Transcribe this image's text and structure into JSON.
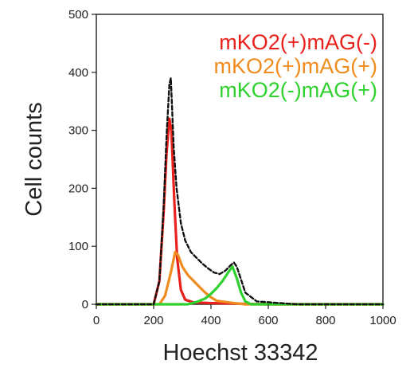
{
  "chart_data": {
    "type": "line",
    "xlabel": "Hoechst 33342",
    "ylabel": "Cell counts",
    "xlim": [
      0,
      1000
    ],
    "ylim": [
      0,
      500
    ],
    "xticks": [
      0,
      200,
      400,
      600,
      800,
      1000
    ],
    "yticks": [
      0,
      100,
      200,
      300,
      400,
      500
    ],
    "xtick_labels": [
      "0",
      "200",
      "400",
      "600",
      "800",
      "1000"
    ],
    "ytick_labels": [
      "0",
      "100",
      "200",
      "300",
      "400",
      "500"
    ],
    "grid": false,
    "legend_position": "top-right",
    "series": [
      {
        "name": "mKO2(+)mAG(-)",
        "color": "#e8211d",
        "style": "solid",
        "x": [
          0,
          200,
          220,
          235,
          245,
          255,
          262,
          272,
          282,
          295,
          310,
          340,
          400,
          500,
          600,
          1000
        ],
        "y": [
          0,
          0,
          40,
          160,
          260,
          320,
          300,
          180,
          80,
          25,
          8,
          3,
          2,
          1,
          0,
          0
        ]
      },
      {
        "name": "mKO2(+)mAG(+)",
        "color": "#f08c1e",
        "style": "solid",
        "x": [
          0,
          220,
          240,
          260,
          275,
          285,
          300,
          320,
          340,
          360,
          380,
          400,
          420,
          450,
          480,
          520,
          1000
        ],
        "y": [
          0,
          0,
          15,
          55,
          90,
          85,
          65,
          50,
          40,
          30,
          20,
          12,
          6,
          4,
          2,
          0,
          0
        ]
      },
      {
        "name": "mKO2(-)mAG(+)",
        "color": "#2fd12f",
        "style": "solid",
        "x": [
          0,
          320,
          350,
          380,
          400,
          420,
          440,
          460,
          475,
          490,
          505,
          520,
          540,
          1000
        ],
        "y": [
          0,
          0,
          4,
          10,
          18,
          28,
          40,
          55,
          65,
          45,
          20,
          5,
          0,
          0
        ]
      },
      {
        "name": "",
        "color": "#111111",
        "style": "dashed",
        "x": [
          0,
          200,
          220,
          235,
          245,
          255,
          260,
          270,
          280,
          295,
          310,
          330,
          350,
          370,
          390,
          410,
          430,
          450,
          470,
          480,
          490,
          500,
          520,
          560,
          700,
          1000
        ],
        "y": [
          0,
          0,
          40,
          170,
          290,
          380,
          390,
          270,
          200,
          140,
          110,
          90,
          80,
          70,
          62,
          55,
          52,
          58,
          68,
          72,
          65,
          50,
          20,
          5,
          0,
          0
        ]
      }
    ]
  }
}
